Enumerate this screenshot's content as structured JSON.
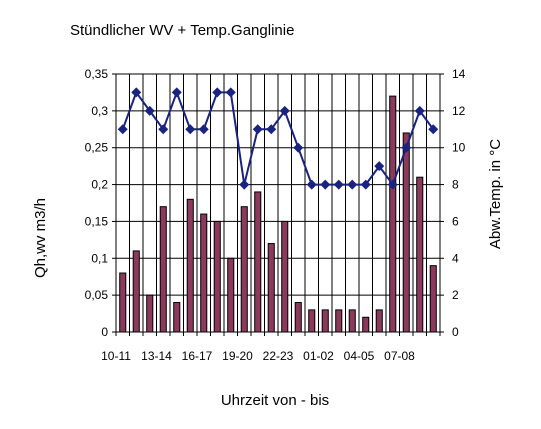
{
  "chart_data": {
    "type": "bar+line",
    "title": "Stündlicher WV + Temp.Ganglinie",
    "xlabel": "Uhrzeit von - bis",
    "ylabel": "Qh,wv m3/h",
    "y2label": "Abw.Temp. in °C",
    "ylim": [
      0,
      0.35
    ],
    "y2lim": [
      0,
      14
    ],
    "yticks": [
      "0",
      "0,05",
      "0,1",
      "0,15",
      "0,2",
      "0,25",
      "0,3",
      "0,35"
    ],
    "y2ticks": [
      "0",
      "2",
      "4",
      "6",
      "8",
      "10",
      "12",
      "14"
    ],
    "xtick_labels": [
      "10-11",
      "13-14",
      "16-17",
      "19-20",
      "22-23",
      "01-02",
      "04-05",
      "07-08"
    ],
    "xtick_every": 3,
    "categories": [
      "10-11",
      "11-12",
      "12-13",
      "13-14",
      "14-15",
      "15-16",
      "16-17",
      "17-18",
      "18-19",
      "19-20",
      "20-21",
      "21-22",
      "22-23",
      "23-24",
      "00-01",
      "01-02",
      "02-03",
      "03-04",
      "04-05",
      "05-06",
      "06-07",
      "07-08",
      "08-09",
      "09-10"
    ],
    "series": [
      {
        "kind": "bar",
        "axis": "left",
        "values": [
          0.08,
          0.11,
          0.05,
          0.17,
          0.04,
          0.18,
          0.16,
          0.15,
          0.1,
          0.17,
          0.19,
          0.12,
          0.15,
          0.04,
          0.03,
          0.03,
          0.03,
          0.03,
          0.02,
          0.03,
          0.32,
          0.27,
          0.21,
          0.09
        ]
      },
      {
        "kind": "line",
        "axis": "right",
        "values": [
          11,
          13,
          12,
          11,
          13,
          11,
          11,
          13,
          13,
          8,
          11,
          11,
          12,
          10,
          8,
          8,
          8,
          8,
          8,
          9,
          8,
          10,
          12,
          11
        ]
      }
    ],
    "grid": true,
    "legend": "none",
    "colors": {
      "bar": "#8b3a5c",
      "line": "#1a237e",
      "plot_bg": "#ffffff",
      "grid": "#000000"
    }
  }
}
